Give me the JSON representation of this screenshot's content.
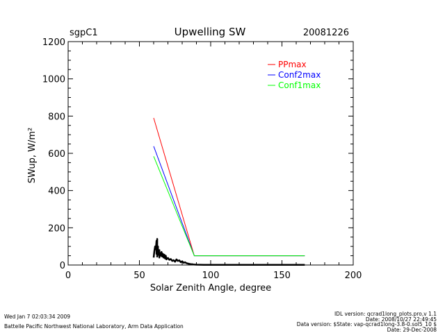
{
  "header": {
    "site": "sgpC1",
    "title": "Upwelling SW",
    "date": "20081226"
  },
  "footer": {
    "left_line1": "Wed Jan  7 02:03:34 2009",
    "left_line2": "Battelle Pacific Northwest National Laboratory, Arm Data Application",
    "right_line1": "IDL version: qcrad1long_plots.pro,v 1.1",
    "right_line2": "Date: 2008/10/27 22:49:45",
    "right_line3": "Data version: $State: vap-qcrad1long-3.8-0.sol5_10 $",
    "right_line4": "Date: 29-Dec-2008"
  },
  "chart_data": {
    "type": "line",
    "title": "Upwelling SW",
    "xlabel": "Solar Zenith Angle, degree",
    "ylabel": "SWup, W/m²",
    "xlim": [
      0,
      200
    ],
    "ylim": [
      0,
      1200
    ],
    "xticks": [
      0,
      50,
      100,
      150,
      200
    ],
    "yticks": [
      0,
      200,
      400,
      600,
      800,
      1000,
      1200
    ],
    "grid": false,
    "legend_position": "top-right",
    "series": [
      {
        "name": "PPmax",
        "color": "#ff0000",
        "x": [
          60,
          88.5,
          166
        ],
        "y": [
          790,
          50,
          50
        ]
      },
      {
        "name": "Conf2max",
        "color": "#0000ff",
        "x": [
          60,
          88.5,
          166
        ],
        "y": [
          638,
          50,
          50
        ]
      },
      {
        "name": "Conf1max",
        "color": "#00ff00",
        "x": [
          60,
          88.5,
          166
        ],
        "y": [
          584,
          50,
          50
        ]
      }
    ],
    "observations": {
      "color": "#000000",
      "x": [
        60,
        60.5,
        61,
        61.5,
        62,
        62,
        62.5,
        62.5,
        63,
        63,
        63.5,
        64,
        64,
        64.5,
        65,
        65.5,
        66,
        66.5,
        67,
        67.5,
        68,
        68.5,
        69,
        70,
        71,
        72,
        73,
        74,
        75,
        76,
        77,
        78,
        79,
        80,
        81,
        82,
        83,
        84,
        85,
        86,
        87,
        88,
        90,
        95,
        100,
        110,
        120,
        130,
        140,
        150,
        160,
        166
      ],
      "y": [
        40,
        75,
        100,
        85,
        130,
        60,
        140,
        45,
        100,
        70,
        55,
        80,
        40,
        65,
        50,
        70,
        45,
        60,
        40,
        55,
        35,
        50,
        30,
        38,
        28,
        32,
        22,
        26,
        18,
        30,
        22,
        25,
        15,
        20,
        12,
        15,
        10,
        8,
        6,
        5,
        4,
        3,
        2,
        1,
        1,
        1,
        1,
        1,
        1,
        1,
        1,
        1
      ]
    }
  }
}
